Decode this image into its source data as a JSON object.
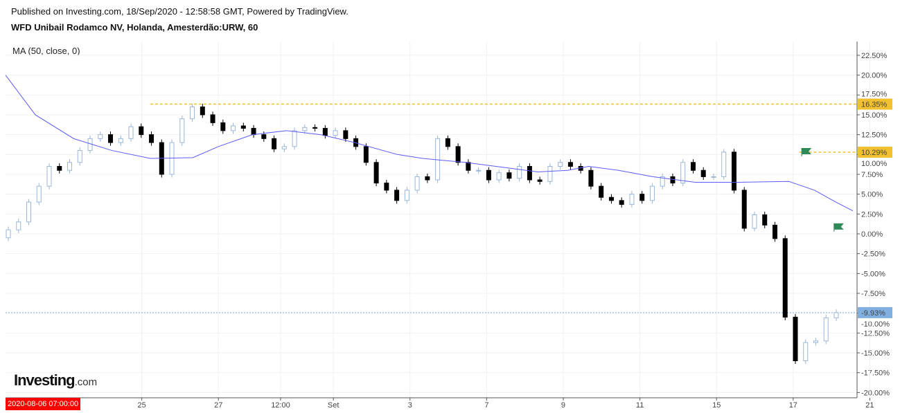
{
  "header": {
    "published": "Published on Investing.com, 18/Sep/2020 - 12:58:58 GMT, Powered by TradingView.",
    "title": "WFD Unibail Rodamco NV, Holanda, Amesterdão:URW, 60"
  },
  "indicator_label": "MA (50, close, 0)",
  "logo": {
    "main": "Investing",
    "suffix": ".com"
  },
  "cursor_date": "2020-08-06 07:00:00",
  "chart_data": {
    "type": "candlestick",
    "title": "WFD Unibail Rodamco NV, Holanda, Amesterdão:URW, 60",
    "ylabel": "%",
    "ylim": [
      -20,
      23.5
    ],
    "yticks": [
      "22.50%",
      "20.00%",
      "17.50%",
      "15.00%",
      "12.50%",
      "10.00%",
      "7.50%",
      "5.00%",
      "2.50%",
      "0.00%",
      "-2.50%",
      "-5.00%",
      "-7.50%",
      "-10.00%",
      "-12.50%",
      "-15.00%",
      "-17.50%",
      "-20.00%"
    ],
    "ytick_values": [
      22.5,
      20,
      17.5,
      15,
      12.5,
      10,
      7.5,
      5,
      2.5,
      0,
      -2.5,
      -5,
      -7.5,
      -10,
      -12.5,
      -15,
      -17.5,
      -20
    ],
    "xticks": [
      "25",
      "27",
      "12:00",
      "Set",
      "3",
      "7",
      "9",
      "11",
      "15",
      "17",
      "21"
    ],
    "xtick_positions": [
      16.0,
      25.0,
      32.3,
      38.5,
      47.5,
      56.5,
      65.5,
      74.5,
      83.5,
      92.5,
      101.5
    ],
    "x_range": [
      0,
      100
    ],
    "open_first": -0.5,
    "closes": [
      0.5,
      1.5,
      4,
      6,
      8.5,
      8,
      9,
      10.5,
      12,
      12.5,
      11.5,
      12,
      13.5,
      12.5,
      11.5,
      7.5,
      11.5,
      14.5,
      16,
      15,
      14,
      13,
      13.6,
      13.3,
      12.5,
      12,
      10.7,
      11,
      13,
      13.4,
      13.3,
      12.4,
      13,
      12,
      11,
      9,
      6.4,
      5.5,
      4.2,
      5.5,
      7.2,
      6.8,
      12,
      11,
      9,
      8,
      8,
      6.8,
      7.7,
      7,
      8.5,
      6.8,
      6.6,
      8.5,
      9,
      8.5,
      8,
      6,
      4.6,
      4.2,
      3.7,
      5,
      4.2,
      6,
      7.2,
      6.4,
      9,
      8,
      7.2,
      7.2,
      10.3,
      5.5,
      0.7,
      2.4,
      1.1,
      -0.6,
      -10.5,
      -16,
      -13.7,
      -13.5,
      -10.6,
      -9.93
    ],
    "ma": {
      "name": "MA (50, close, 0)",
      "color": "#5b5bf5",
      "points": [
        [
          0,
          20
        ],
        [
          3.5,
          15
        ],
        [
          8,
          12
        ],
        [
          12.5,
          10.5
        ],
        [
          17,
          9.5
        ],
        [
          22,
          9.6
        ],
        [
          25,
          11
        ],
        [
          29,
          12.5
        ],
        [
          33,
          13
        ],
        [
          37,
          12.5
        ],
        [
          41,
          11.5
        ],
        [
          46,
          10
        ],
        [
          49,
          9.5
        ],
        [
          54,
          9
        ],
        [
          59,
          8.3
        ],
        [
          62.5,
          7.8
        ],
        [
          66,
          8
        ],
        [
          68.5,
          8.5
        ],
        [
          72,
          8
        ],
        [
          76,
          7.2
        ],
        [
          81,
          6.5
        ],
        [
          86,
          6.5
        ],
        [
          92,
          6.6
        ],
        [
          95,
          5.5
        ],
        [
          97.5,
          4
        ],
        [
          99.5,
          2.9
        ]
      ]
    },
    "horizontal_lines": [
      {
        "label": "16.35%",
        "value": 16.35,
        "color": "#f0c030",
        "start": 17
      },
      {
        "label": "10.29%",
        "value": 10.29,
        "color": "#f0c030",
        "start": 93.2
      },
      {
        "label": "-9.93%",
        "value": -9.93,
        "color": "#7fb0e0",
        "start": 0
      }
    ],
    "flags": [
      {
        "x": 93.5,
        "value": 10.29
      },
      {
        "x": 97.3,
        "value": 0.8
      }
    ],
    "up_color": "#ffffff",
    "up_border": "#9ab6d6",
    "down_color": "#000000"
  }
}
